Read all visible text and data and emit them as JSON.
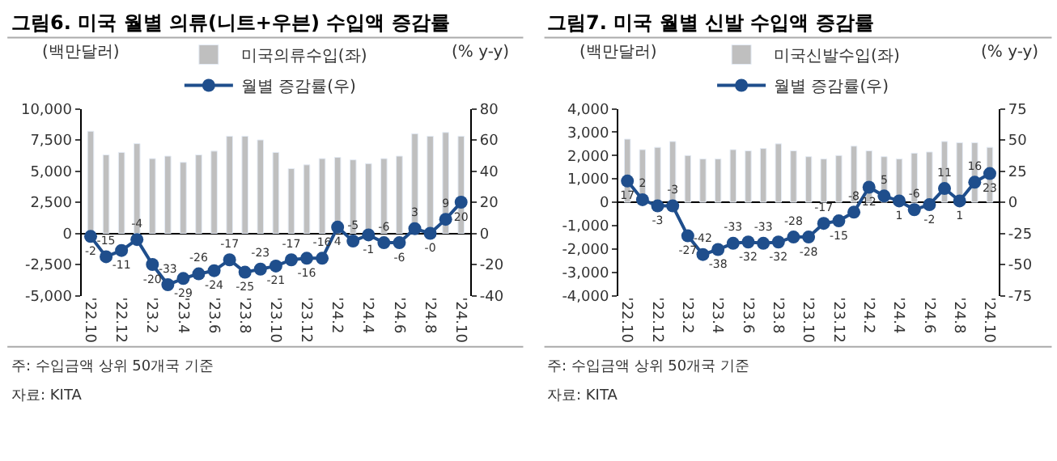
{
  "chart_data": [
    {
      "type": "bar",
      "title": "그림6. 미국 월별 의류(니트+우븐) 수입액 증감률",
      "ylabel": "(백만달러)",
      "y2label": "(% y-y)",
      "legend": "top",
      "categories": [
        "'22.10",
        null,
        "'22.12",
        null,
        "'23.2",
        null,
        "'23.4",
        null,
        "'23.6",
        null,
        "'23.8",
        null,
        "'23.10",
        null,
        "'23.12",
        null,
        "'24.2",
        null,
        "'24.4",
        null,
        "'24.6",
        null,
        "'24.8",
        null,
        "'24.10"
      ],
      "series": [
        {
          "name": "미국의류수입(좌)",
          "color": "#bfbfbf",
          "values": [
            8200,
            6300,
            6500,
            7200,
            6000,
            6200,
            5700,
            6300,
            6600,
            7800,
            7800,
            7500,
            6500,
            5200,
            5500,
            6000,
            6100,
            5900,
            5600,
            6000,
            6200,
            8000,
            7800,
            8100,
            7800
          ]
        },
        {
          "name": "월별 증감률(우)",
          "type": "line",
          "axis": "y2",
          "color": "#1f4e8c",
          "marker": "circle",
          "values": [
            -2,
            -15,
            -11,
            -4,
            -20,
            -33,
            -29,
            -26,
            -24,
            -17,
            -25,
            -23,
            -21,
            -17,
            -16,
            -16,
            4,
            -5,
            -1,
            -6,
            -6,
            3,
            0,
            9,
            20
          ],
          "value_labels": [
            "-2",
            "-15",
            "-11",
            "-4",
            "-20",
            "-33",
            "-29",
            "-26",
            "-24",
            "-17",
            "-25",
            "-23",
            "-21",
            "-17",
            "-16",
            "-16",
            "4",
            "-5",
            "-1",
            "-6",
            "-6",
            "3",
            "-0",
            "9",
            "20"
          ]
        }
      ],
      "ylim": [
        -5000,
        10000
      ],
      "yticks": [
        {
          "value": -5000,
          "label": "-5,000"
        },
        {
          "value": -2500,
          "label": "-2,500"
        },
        0,
        {
          "value": 2500,
          "label": "2,500"
        },
        {
          "value": 5000,
          "label": "5,000"
        },
        {
          "value": 7500,
          "label": "7,500"
        },
        {
          "value": 10000,
          "label": "10,000"
        }
      ],
      "y2lim": [
        -40,
        80
      ],
      "y2ticks": [
        -40,
        -20,
        0,
        20,
        40,
        60,
        80
      ],
      "annotations": [
        "주: 수입금액 상위 50개국 기준",
        "자료: KITA"
      ]
    },
    {
      "type": "bar",
      "title": "그림7. 미국 월별 신발 수입액 증감률",
      "ylabel": "(백만달러)",
      "y2label": "(% y-y)",
      "legend": "top",
      "categories": [
        "'22.10",
        null,
        "'22.12",
        null,
        "'23.2",
        null,
        "'23.4",
        null,
        "'23.6",
        null,
        "'23.8",
        null,
        "'23.10",
        null,
        "'23.12",
        null,
        "'24.2",
        null,
        "'24.4",
        null,
        "'24.6",
        null,
        "'24.8",
        null,
        "'24.10"
      ],
      "series": [
        {
          "name": "미국신발수입(좌)",
          "color": "#bfbfbf",
          "values": [
            2700,
            2250,
            2350,
            2600,
            2000,
            1850,
            1850,
            2250,
            2200,
            2300,
            2500,
            2200,
            1950,
            1850,
            2000,
            2400,
            2200,
            1950,
            1850,
            2100,
            2150,
            2600,
            2550,
            2550,
            2350
          ]
        },
        {
          "name": "월별 증감률(우)",
          "type": "line",
          "axis": "y2",
          "color": "#1f4e8c",
          "marker": "circle",
          "values": [
            17,
            2,
            -3,
            -3,
            -27,
            -42,
            -38,
            -33,
            -32,
            -33,
            -32,
            -28,
            -28,
            -17,
            -15,
            -8,
            12,
            5,
            1,
            -6,
            -2,
            11,
            1,
            16,
            23
          ],
          "value_labels": [
            "17",
            "2",
            "-3",
            "-3",
            "-27",
            "-42",
            "-38",
            "-33",
            "-32",
            "-33",
            "-32",
            "-28",
            "-28",
            "-17",
            "-15",
            "-8",
            "12",
            "5",
            "1",
            "-6",
            "-2",
            "11",
            "1",
            "16",
            "23"
          ]
        }
      ],
      "ylim": [
        -4000,
        4000
      ],
      "yticks": [
        {
          "value": -4000,
          "label": "-4,000"
        },
        {
          "value": -3000,
          "label": "-3,000"
        },
        {
          "value": -2000,
          "label": "-2,000"
        },
        {
          "value": -1000,
          "label": "-1,000"
        },
        0,
        {
          "value": 1000,
          "label": "1,000"
        },
        {
          "value": 2000,
          "label": "2,000"
        },
        {
          "value": 3000,
          "label": "3,000"
        },
        {
          "value": 4000,
          "label": "4,000"
        }
      ],
      "y2lim": [
        -75,
        75
      ],
      "y2ticks": [
        -75,
        -50,
        -25,
        0,
        25,
        50,
        75
      ],
      "annotations": [
        "주: 수입금액 상위 50개국 기준",
        "자료: KITA"
      ]
    }
  ]
}
